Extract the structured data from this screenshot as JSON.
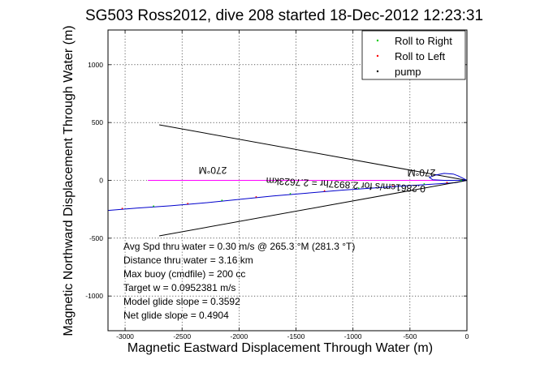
{
  "chart_data": {
    "type": "line",
    "title": "SG503 Ross2012, dive 208 started 18-Dec-2012 12:23:31",
    "xlabel": "Magnetic Eastward Displacement Through Water (m)",
    "ylabel": "Magnetic Northward Displacement Through Water (m)",
    "xlim": [
      -3150,
      0
    ],
    "ylim": [
      -1300,
      1300
    ],
    "x_ticks": [
      -3000,
      -2500,
      -2000,
      -1500,
      -1000,
      -500,
      0
    ],
    "y_ticks": [
      -1000,
      -500,
      0,
      500,
      1000
    ],
    "grid": true,
    "legend_position": "top-right",
    "legend": [
      {
        "label": "Roll to Right",
        "color": "#00cc00",
        "marker": "dot"
      },
      {
        "label": "Roll to Left",
        "color": "#ff0000",
        "marker": "dot"
      },
      {
        "label": "pump",
        "color": "#000000",
        "marker": "dot"
      }
    ],
    "series": [
      {
        "color": "#0000cc",
        "points": [
          [
            0,
            0
          ],
          [
            -100,
            -20
          ],
          [
            -250,
            -30
          ],
          [
            -500,
            -45
          ],
          [
            -800,
            -65
          ],
          [
            -1100,
            -85
          ],
          [
            -1400,
            -110
          ],
          [
            -1700,
            -135
          ],
          [
            -2000,
            -165
          ],
          [
            -2300,
            -195
          ],
          [
            -2600,
            -220
          ],
          [
            -2900,
            -240
          ],
          [
            -3150,
            -260
          ]
        ]
      },
      {
        "color": "#ff00ff",
        "points": [
          [
            -2800,
            0
          ],
          [
            0,
            0
          ]
        ]
      },
      {
        "color": "#000000",
        "points": [
          [
            -2700,
            480
          ],
          [
            0,
            0
          ],
          [
            -2700,
            -480
          ]
        ]
      },
      {
        "color": "#0000cc",
        "points": [
          [
            0,
            0
          ],
          [
            -40,
            20
          ],
          [
            -80,
            40
          ],
          [
            -120,
            55
          ],
          [
            -200,
            60
          ],
          [
            -280,
            45
          ],
          [
            -330,
            25
          ],
          [
            -300,
            5
          ],
          [
            -200,
            0
          ],
          [
            0,
            0
          ]
        ]
      }
    ],
    "annotations": {
      "rotated_heading_1": "270°M",
      "rotated_heading_2": "270°M",
      "rotated_current": "0.2861cm/s for 2.8937hr = 2.7623km",
      "stats": [
        "Avg Spd thru water =  0.30 m/s @ 265.3   °M (281.3 °T)",
        "Distance thru water =  3.16 km",
        "Max buoy (cmdfile) = 200 cc",
        "Target w = 0.0952381 m/s",
        "Model glide slope = 0.3592",
        "Net glide slope = 0.4904"
      ]
    }
  }
}
